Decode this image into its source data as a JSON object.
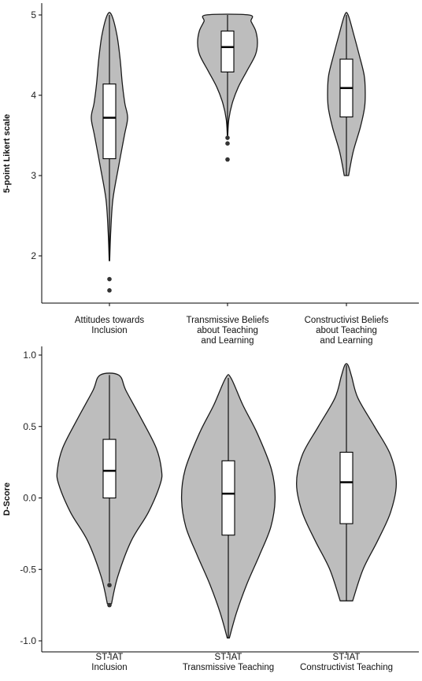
{
  "chart_data": [
    {
      "type": "violin",
      "ylabel": "5-point Likert scale",
      "ylim": [
        1.55,
        5.0
      ],
      "yticks": [
        2,
        3,
        4,
        5
      ],
      "ytick_labels": [
        "2",
        "3",
        "4",
        "5"
      ],
      "grid": false,
      "groups": [
        {
          "label_lines": [
            "Attitudes towards",
            "Inclusion"
          ],
          "min": 1.94,
          "q1": 3.21,
          "median": 3.72,
          "q3": 4.14,
          "max": 5.0,
          "outliers": [
            1.71,
            1.57
          ],
          "density": [
            [
              1.94,
              0.1
            ],
            [
              2.3,
              0.6
            ],
            [
              2.7,
              1.6
            ],
            [
              3.1,
              4.2
            ],
            [
              3.5,
              7.0
            ],
            [
              3.72,
              8.5
            ],
            [
              3.9,
              7.2
            ],
            [
              4.15,
              6.0
            ],
            [
              4.45,
              5.0
            ],
            [
              4.75,
              3.5
            ],
            [
              5.0,
              1.0
            ]
          ]
        },
        {
          "label_lines": [
            "Transmissive Beliefs",
            "about Teaching",
            "and Learning"
          ],
          "min": 3.5,
          "q1": 4.29,
          "median": 4.6,
          "q3": 4.8,
          "max": 5.0,
          "outliers": [
            3.47,
            3.4,
            3.2
          ],
          "density": [
            [
              3.5,
              0.1
            ],
            [
              3.7,
              0.6
            ],
            [
              3.9,
              2.2
            ],
            [
              4.1,
              5.0
            ],
            [
              4.3,
              9.0
            ],
            [
              4.5,
              13.0
            ],
            [
              4.65,
              14.0
            ],
            [
              4.8,
              13.2
            ],
            [
              4.92,
              11.0
            ],
            [
              5.0,
              10.0
            ]
          ]
        },
        {
          "label_lines": [
            "Constructivist Beliefs",
            "about Teaching",
            "and Learning"
          ],
          "min": 3.0,
          "q1": 3.73,
          "median": 4.09,
          "q3": 4.45,
          "max": 5.0,
          "outliers": [],
          "density": [
            [
              3.0,
              1.0
            ],
            [
              3.3,
              3.2
            ],
            [
              3.6,
              6.5
            ],
            [
              3.85,
              8.5
            ],
            [
              4.05,
              8.8
            ],
            [
              4.25,
              8.3
            ],
            [
              4.5,
              6.0
            ],
            [
              4.75,
              3.5
            ],
            [
              5.0,
              0.8
            ]
          ]
        }
      ]
    },
    {
      "type": "violin",
      "ylabel": "D-Score",
      "ylim": [
        -1.0,
        1.0
      ],
      "yticks": [
        1.0,
        0.5,
        0.0,
        -0.5,
        -1.0
      ],
      "ytick_labels": [
        "1.0",
        "0.5",
        "0.0",
        "-0.5",
        "-1.0"
      ],
      "grid": false,
      "groups": [
        {
          "label_lines": [
            "ST-IAT",
            "Inclusion"
          ],
          "min": -0.59,
          "q1": 0.0,
          "median": 0.19,
          "q3": 0.41,
          "max": 0.86,
          "outliers": [
            -0.61,
            -0.75
          ],
          "density": [
            [
              -0.74,
              0.4
            ],
            [
              -0.55,
              1.6
            ],
            [
              -0.3,
              4.2
            ],
            [
              -0.1,
              7.5
            ],
            [
              0.1,
              9.8
            ],
            [
              0.2,
              10.0
            ],
            [
              0.35,
              9.0
            ],
            [
              0.55,
              6.2
            ],
            [
              0.75,
              3.2
            ],
            [
              0.86,
              1.8
            ]
          ]
        },
        {
          "label_lines": [
            "ST-IAT",
            "Transmissive Teaching"
          ],
          "min": -0.98,
          "q1": -0.26,
          "median": 0.03,
          "q3": 0.26,
          "max": 0.84,
          "outliers": [],
          "density": [
            [
              -0.98,
              0.2
            ],
            [
              -0.8,
              1.6
            ],
            [
              -0.6,
              3.6
            ],
            [
              -0.4,
              6.0
            ],
            [
              -0.2,
              8.2
            ],
            [
              0.0,
              9.0
            ],
            [
              0.2,
              8.3
            ],
            [
              0.45,
              5.6
            ],
            [
              0.65,
              2.8
            ],
            [
              0.84,
              0.5
            ]
          ]
        },
        {
          "label_lines": [
            "ST-IAT",
            "Constructivist Teaching"
          ],
          "min": -0.72,
          "q1": -0.18,
          "median": 0.11,
          "q3": 0.32,
          "max": 0.93,
          "outliers": [],
          "density": [
            [
              -0.72,
              1.2
            ],
            [
              -0.5,
              3.2
            ],
            [
              -0.3,
              6.0
            ],
            [
              -0.1,
              8.5
            ],
            [
              0.1,
              9.6
            ],
            [
              0.3,
              8.5
            ],
            [
              0.5,
              5.4
            ],
            [
              0.7,
              2.2
            ],
            [
              0.85,
              1.0
            ],
            [
              0.93,
              0.3
            ]
          ]
        }
      ]
    }
  ]
}
